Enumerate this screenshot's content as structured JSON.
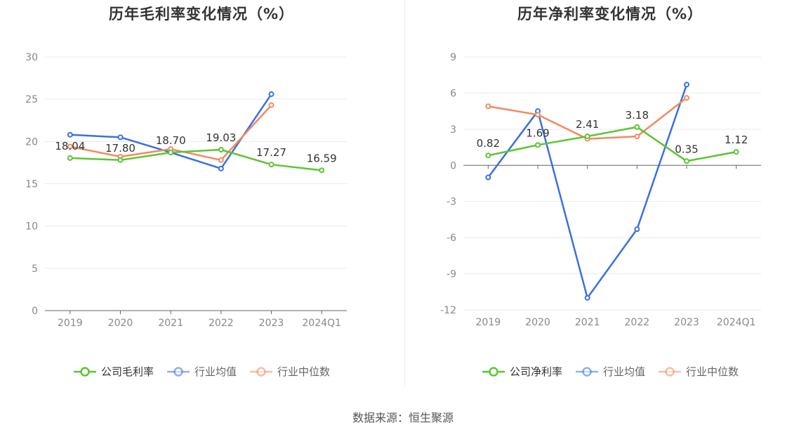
{
  "source": "数据来源：恒生聚源",
  "chart_data": [
    {
      "id": "left",
      "type": "line",
      "title": "历年毛利率变化情况（%）",
      "categories": [
        "2019",
        "2020",
        "2021",
        "2022",
        "2023",
        "2024Q1"
      ],
      "ylim": [
        0,
        30
      ],
      "yticks": [
        0,
        5,
        10,
        15,
        20,
        25,
        30
      ],
      "grid": true,
      "legend_position": "bottom",
      "series": [
        {
          "name": "公司毛利率",
          "color": "#5cc534",
          "values": [
            18.04,
            17.8,
            18.7,
            19.03,
            17.27,
            16.59
          ],
          "labels": [
            "18.04",
            "17.80",
            "18.70",
            "19.03",
            "17.27",
            "16.59"
          ]
        },
        {
          "name": "行业均值",
          "color": "#3a70e0",
          "values": [
            20.8,
            20.5,
            18.7,
            16.8,
            25.6,
            null
          ],
          "labels": []
        },
        {
          "name": "行业中位数",
          "color": "#f28a60",
          "values": [
            19.4,
            18.2,
            19.1,
            17.8,
            24.3,
            null
          ],
          "labels": []
        }
      ]
    },
    {
      "id": "right",
      "type": "line",
      "title": "历年净利率变化情况（%）",
      "categories": [
        "2019",
        "2020",
        "2021",
        "2022",
        "2023",
        "2024Q1"
      ],
      "ylim": [
        -12,
        9
      ],
      "yticks": [
        -12,
        -9,
        -6,
        -3,
        0,
        3,
        6,
        9
      ],
      "grid": true,
      "legend_position": "bottom",
      "series": [
        {
          "name": "公司净利率",
          "color": "#5cc534",
          "values": [
            0.82,
            1.69,
            2.41,
            3.18,
            0.35,
            1.12
          ],
          "labels": [
            "0.82",
            "1.69",
            "2.41",
            "3.18",
            "0.35",
            "1.12"
          ]
        },
        {
          "name": "行业均值",
          "color": "#3a70e0",
          "values": [
            -1.0,
            4.5,
            -11.0,
            -5.3,
            6.7,
            null
          ],
          "labels": []
        },
        {
          "name": "行业中位数",
          "color": "#f28a60",
          "values": [
            4.9,
            4.2,
            2.2,
            2.4,
            5.6,
            null
          ],
          "labels": []
        }
      ]
    }
  ]
}
